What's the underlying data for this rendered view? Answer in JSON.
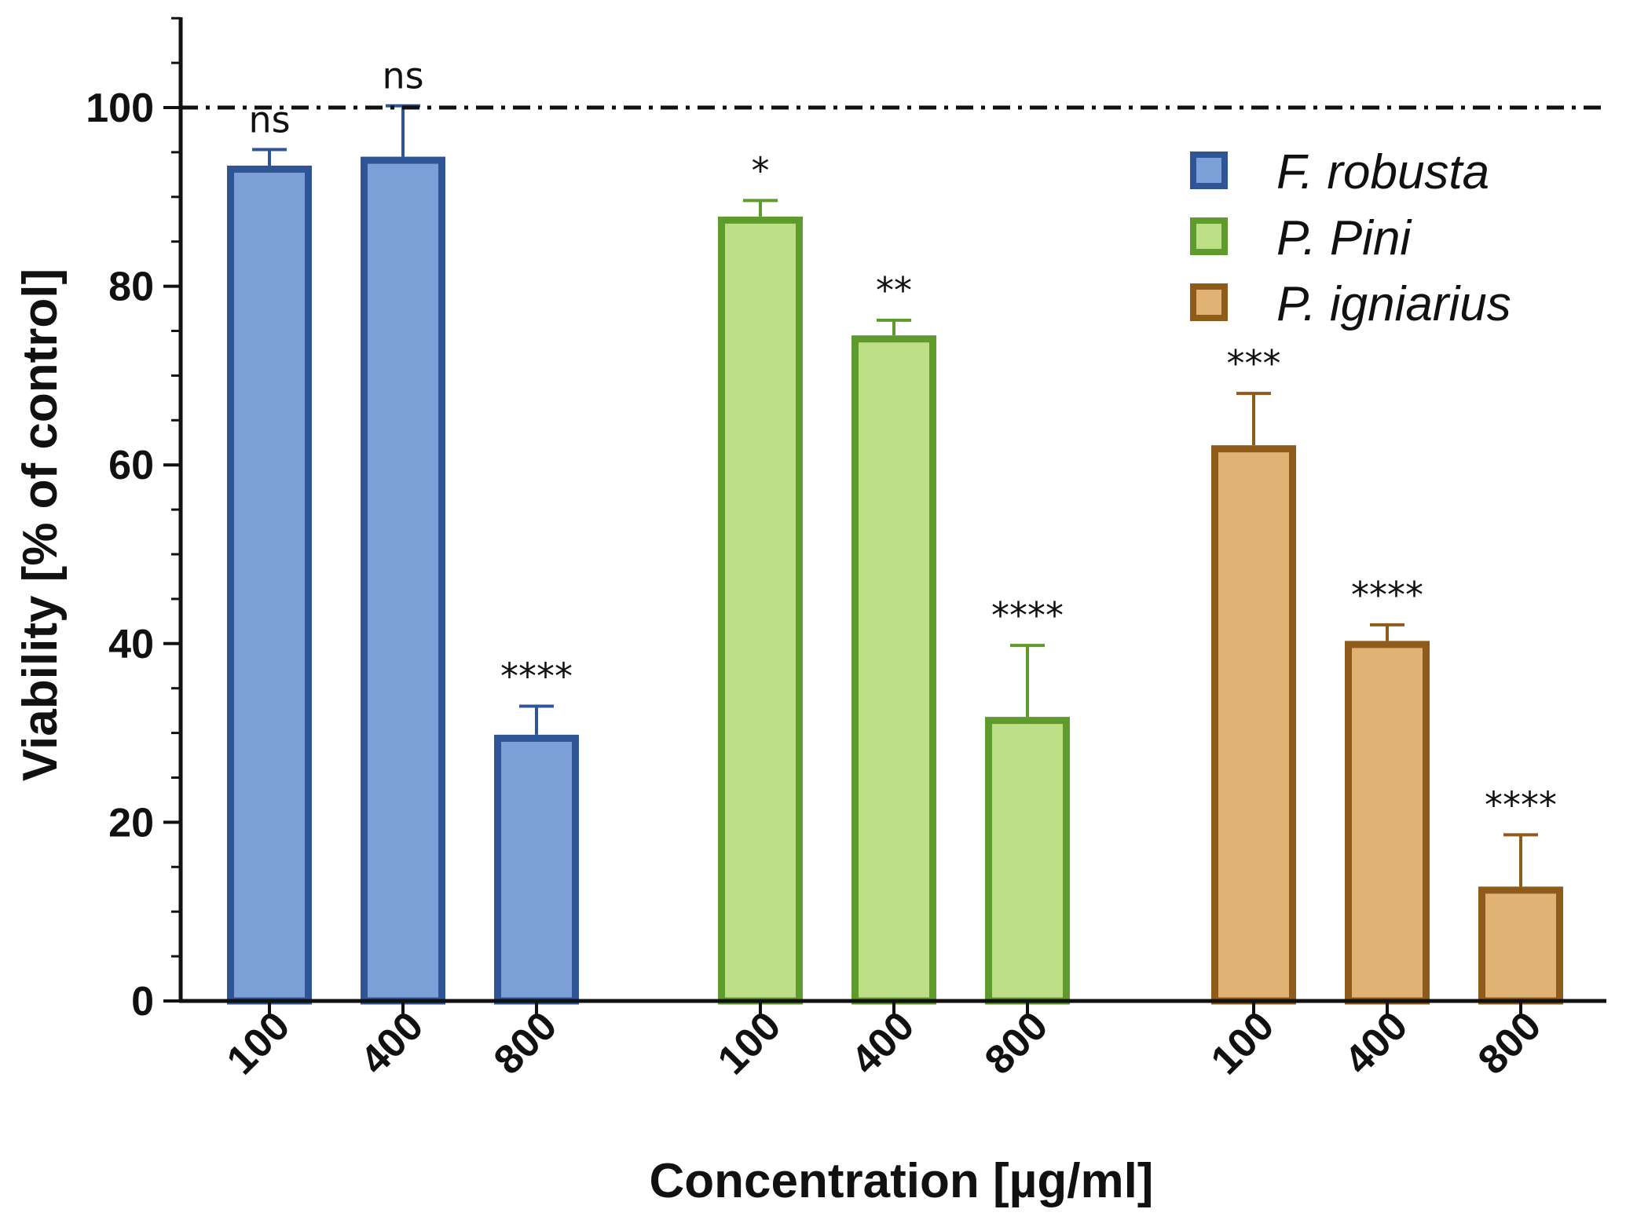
{
  "chart_data": {
    "type": "bar",
    "xlabel": "Concentration  [µg/ml]",
    "ylabel": "Viability [% of control]",
    "ylim": [
      0,
      110
    ],
    "yticks": [
      0,
      20,
      40,
      60,
      80,
      100
    ],
    "reference_line": 100,
    "series": [
      {
        "name": "F. robusta",
        "fill": "#7b9fd6",
        "stroke": "#2f5597",
        "categories": [
          "100",
          "400",
          "800"
        ],
        "values": [
          93.5,
          94.5,
          29.8
        ],
        "errors": [
          1.8,
          5.7,
          3.2
        ],
        "significance": [
          "ns",
          "ns",
          "****"
        ]
      },
      {
        "name": "P. Pini",
        "fill": "#bcdf85",
        "stroke": "#5e9a2c",
        "categories": [
          "100",
          "400",
          "800"
        ],
        "values": [
          87.8,
          74.5,
          31.8
        ],
        "errors": [
          1.8,
          1.7,
          8.0
        ],
        "significance": [
          "*",
          "**",
          "****"
        ]
      },
      {
        "name": "P. igniarius",
        "fill": "#e0b375",
        "stroke": "#8f5b1a",
        "categories": [
          "100",
          "400",
          "800"
        ],
        "values": [
          62.2,
          40.3,
          12.8
        ],
        "errors": [
          5.8,
          1.8,
          5.8
        ],
        "significance": [
          "***",
          "****",
          "****"
        ]
      }
    ],
    "legend_position": "top-right",
    "grid": false
  }
}
